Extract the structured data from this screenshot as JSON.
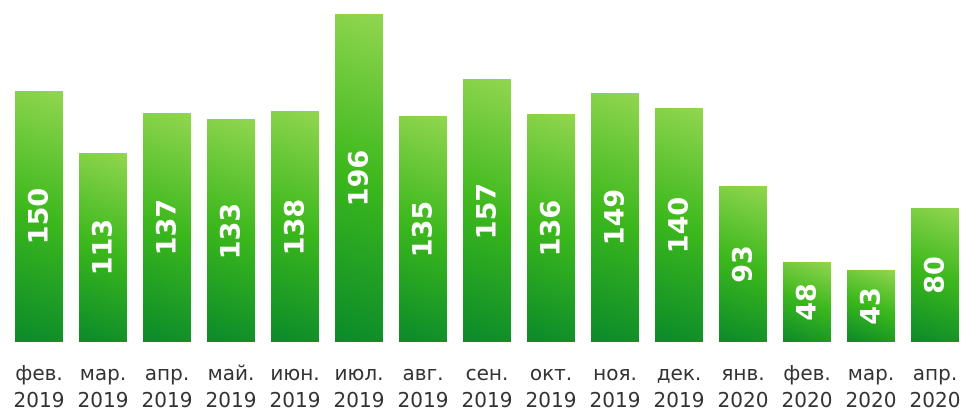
{
  "chart_data": {
    "type": "bar",
    "categories": [
      "фев. 2019",
      "мар. 2019",
      "апр. 2019",
      "май. 2019",
      "июн. 2019",
      "июл. 2019",
      "авг. 2019",
      "сен. 2019",
      "окт. 2019",
      "ноя. 2019",
      "дек. 2019",
      "янв. 2020",
      "фев. 2020",
      "мар. 2020",
      "апр. 2020"
    ],
    "values": [
      150,
      113,
      137,
      133,
      138,
      196,
      135,
      157,
      136,
      149,
      140,
      93,
      48,
      43,
      80
    ],
    "color": "#3cb81c"
  }
}
